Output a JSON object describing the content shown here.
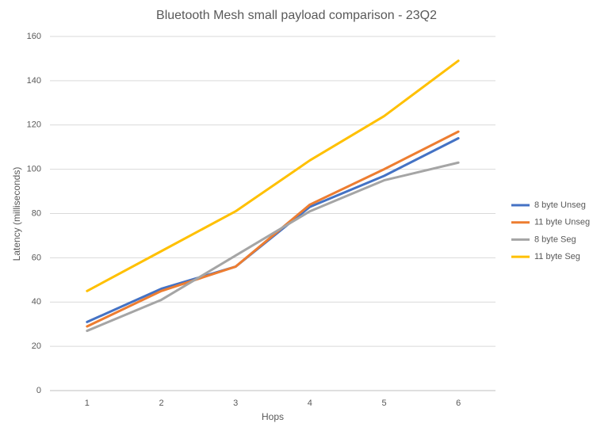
{
  "chart_data": {
    "type": "line",
    "title": "Bluetooth Mesh small payload comparison - 23Q2",
    "x_label": "Hops",
    "y_label": "Latency (milliseconds)",
    "categories": [
      "1",
      "2",
      "3",
      "4",
      "5",
      "6"
    ],
    "series": [
      {
        "name": "8 byte Unseg",
        "color": "#4472c4",
        "values": [
          31,
          46,
          56,
          83,
          97,
          114
        ]
      },
      {
        "name": "11 byte Unseg",
        "color": "#ed7d31",
        "values": [
          29,
          45,
          56,
          84,
          100,
          117
        ]
      },
      {
        "name": "8 byte Seg",
        "color": "#a5a5a5",
        "values": [
          27,
          41,
          61,
          81,
          95,
          103
        ]
      },
      {
        "name": "11 byte Seg",
        "color": "#ffc000",
        "values": [
          45,
          63,
          81,
          104,
          124,
          149
        ]
      }
    ],
    "ylim": [
      0,
      160
    ],
    "yticks": [
      0,
      20,
      40,
      60,
      80,
      100,
      120,
      140,
      160
    ],
    "grid": true,
    "legend": "right"
  }
}
